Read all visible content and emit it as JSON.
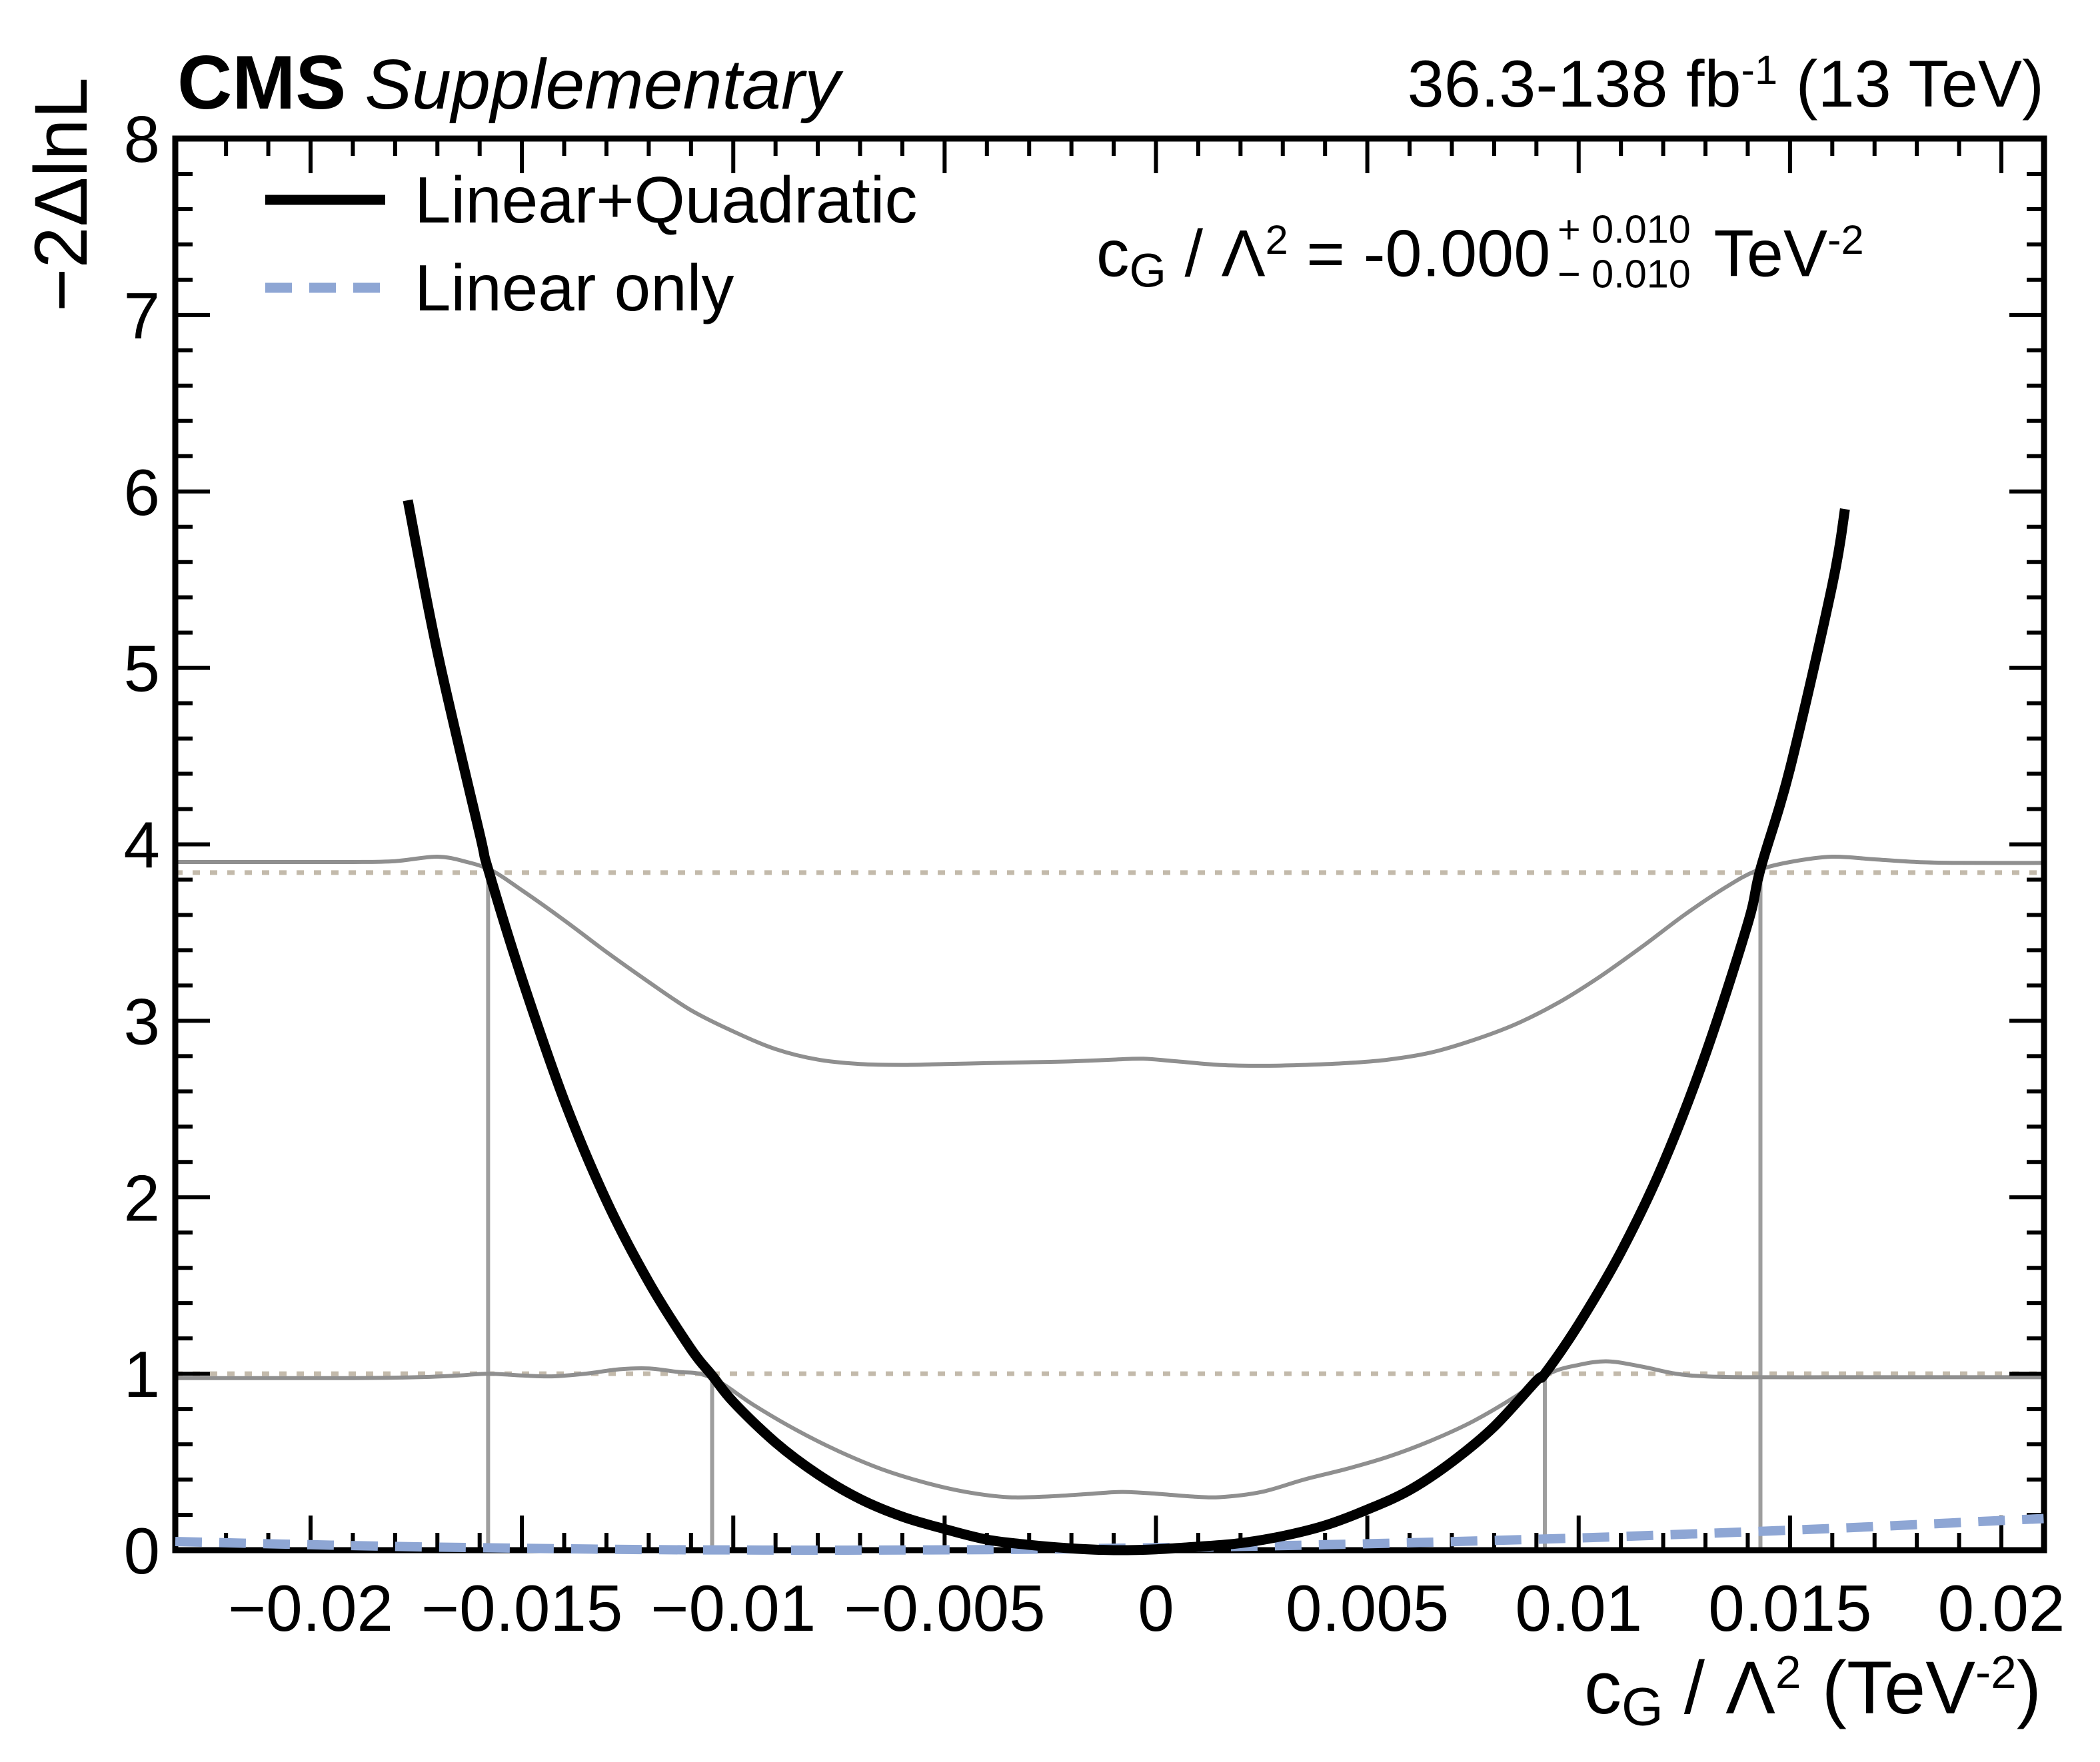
{
  "header": {
    "experiment": "CMS",
    "label": "Supplementary",
    "lumi_main": "36.3-138 fb",
    "lumi_sup": "-1",
    "lumi_energy": " (13 TeV)"
  },
  "fit_result": {
    "coeff_main": "c",
    "coeff_sub": "G",
    "slash": " / ",
    "lambda": "Λ",
    "lambda_sup": "2",
    "equals": " = ",
    "central_value": "-0.000",
    "err_up": "+ 0.010",
    "err_down": "− 0.010",
    "unit_main": " TeV",
    "unit_sup": "-2"
  },
  "y_axis_title": "−2ΔlnL",
  "x_axis_title": {
    "coeff_main": "c",
    "coeff_sub": "G",
    "slash": " / ",
    "lambda": "Λ",
    "lambda_sup": "2",
    "unit_open": " (TeV",
    "unit_sup": "-2",
    "unit_close": ")"
  },
  "legend": [
    {
      "label": "Linear+Quadratic",
      "style": "solid",
      "color": "#000000"
    },
    {
      "label": "Linear only",
      "style": "dashed",
      "color": "#8ea6d4"
    }
  ],
  "chart_data": {
    "type": "line",
    "xlabel": "c_G / Lambda^2 (TeV^-2)",
    "ylabel": "-2 Delta lnL",
    "xlim": [
      -0.02321,
      0.02101
    ],
    "ylim": [
      0,
      8
    ],
    "grid": false,
    "x_ticks": {
      "major_values": [
        -0.02,
        -0.015,
        -0.01,
        -0.005,
        0,
        0.005,
        0.01,
        0.015,
        0.02
      ],
      "major_labels": [
        "−0.02",
        "−0.015",
        "−0.01",
        "−0.005",
        "0",
        "0.005",
        "0.01",
        "0.015",
        "0.02"
      ],
      "minor_start": -0.022,
      "minor_end": 0.02,
      "minor_step": 0.001
    },
    "y_ticks": {
      "major_values": [
        0,
        1,
        2,
        3,
        4,
        5,
        6,
        7,
        8
      ],
      "major_labels": [
        "0",
        "1",
        "2",
        "3",
        "4",
        "5",
        "6",
        "7",
        "8"
      ],
      "minor_start": 0.2,
      "minor_end": 7.8,
      "minor_step": 0.2
    },
    "cl_horizontal_lines": [
      {
        "name": "68% CL threshold",
        "y": 1.0,
        "color": "#c3baab"
      },
      {
        "name": "95% CL threshold",
        "y": 3.84,
        "color": "#c3baab"
      }
    ],
    "cl_vertical_lines": [
      {
        "name": "95% CL lower",
        "x": -0.0158,
        "y_top": 3.86,
        "color": "#9e9e9e"
      },
      {
        "name": "68% CL lower",
        "x": -0.0105,
        "y_top": 0.99,
        "color": "#9e9e9e"
      },
      {
        "name": "68% CL upper",
        "x": 0.0092,
        "y_top": 0.99,
        "color": "#9e9e9e"
      },
      {
        "name": "95% CL upper",
        "x": 0.0143,
        "y_top": 3.86,
        "color": "#9e9e9e"
      }
    ],
    "series": [
      {
        "name": "saturated-scan-upper-gray",
        "color": "#8f8f8f",
        "width": 6,
        "style": "solid",
        "points_x_milli_y": [
          [
            -23.2,
            3.9
          ],
          [
            -21,
            3.9
          ],
          [
            -19,
            3.9
          ],
          [
            -18,
            3.905
          ],
          [
            -17,
            3.93
          ],
          [
            -16.3,
            3.9
          ],
          [
            -15.7,
            3.85
          ],
          [
            -15,
            3.74
          ],
          [
            -14,
            3.57
          ],
          [
            -13,
            3.39
          ],
          [
            -12,
            3.22
          ],
          [
            -11,
            3.06
          ],
          [
            -10,
            2.94
          ],
          [
            -9,
            2.84
          ],
          [
            -8,
            2.78
          ],
          [
            -7,
            2.755
          ],
          [
            -6,
            2.75
          ],
          [
            -5,
            2.755
          ],
          [
            -4,
            2.76
          ],
          [
            -3,
            2.765
          ],
          [
            -2,
            2.77
          ],
          [
            -1,
            2.78
          ],
          [
            -0.3,
            2.785
          ],
          [
            0.5,
            2.77
          ],
          [
            1.5,
            2.75
          ],
          [
            2.5,
            2.745
          ],
          [
            3.5,
            2.75
          ],
          [
            4.5,
            2.76
          ],
          [
            5.5,
            2.78
          ],
          [
            6.5,
            2.82
          ],
          [
            7.5,
            2.89
          ],
          [
            8.5,
            2.98
          ],
          [
            9.5,
            3.1
          ],
          [
            10.5,
            3.25
          ],
          [
            11.5,
            3.42
          ],
          [
            12.5,
            3.6
          ],
          [
            13.5,
            3.76
          ],
          [
            14.2,
            3.85
          ],
          [
            15,
            3.9
          ],
          [
            16,
            3.93
          ],
          [
            17,
            3.915
          ],
          [
            18,
            3.9
          ],
          [
            19,
            3.895
          ],
          [
            21.0,
            3.895
          ]
        ]
      },
      {
        "name": "saturated-scan-lower-gray",
        "color": "#8f8f8f",
        "width": 6,
        "style": "solid",
        "points_x_milli_y": [
          [
            -23.2,
            0.975
          ],
          [
            -21,
            0.975
          ],
          [
            -19,
            0.975
          ],
          [
            -17.5,
            0.98
          ],
          [
            -16.5,
            0.99
          ],
          [
            -15.8,
            1.0
          ],
          [
            -15,
            0.99
          ],
          [
            -14.3,
            0.985
          ],
          [
            -13.5,
            1.0
          ],
          [
            -12.7,
            1.025
          ],
          [
            -12,
            1.03
          ],
          [
            -11.3,
            1.01
          ],
          [
            -10.8,
            1.0
          ],
          [
            -10.3,
            0.95
          ],
          [
            -9.5,
            0.82
          ],
          [
            -8.5,
            0.68
          ],
          [
            -7.5,
            0.56
          ],
          [
            -6.5,
            0.46
          ],
          [
            -5.5,
            0.385
          ],
          [
            -4.5,
            0.33
          ],
          [
            -3.5,
            0.3
          ],
          [
            -2.5,
            0.305
          ],
          [
            -1.5,
            0.32
          ],
          [
            -0.8,
            0.33
          ],
          [
            0,
            0.32
          ],
          [
            0.8,
            0.305
          ],
          [
            1.5,
            0.3
          ],
          [
            2.5,
            0.33
          ],
          [
            3.5,
            0.4
          ],
          [
            4.5,
            0.46
          ],
          [
            5.5,
            0.53
          ],
          [
            6.5,
            0.62
          ],
          [
            7.5,
            0.73
          ],
          [
            8.5,
            0.87
          ],
          [
            9.3,
            1.0
          ],
          [
            10,
            1.05
          ],
          [
            10.7,
            1.07
          ],
          [
            11.5,
            1.04
          ],
          [
            12.3,
            1.0
          ],
          [
            13,
            0.985
          ],
          [
            14,
            0.98
          ],
          [
            16,
            0.98
          ],
          [
            18,
            0.98
          ],
          [
            21.0,
            0.98
          ]
        ]
      },
      {
        "name": "linear-only",
        "color": "#8ea6d4",
        "width": 14,
        "style": "dashed",
        "points_x_milli_y": [
          [
            -23.2,
            0.049
          ],
          [
            -22,
            0.042
          ],
          [
            -20,
            0.031
          ],
          [
            -18,
            0.021
          ],
          [
            -16,
            0.014
          ],
          [
            -14,
            0.008
          ],
          [
            -12,
            0.003
          ],
          [
            -10,
            0.001
          ],
          [
            -8,
            0.0
          ],
          [
            -6,
            0.001
          ],
          [
            -4,
            0.003
          ],
          [
            -2,
            0.008
          ],
          [
            0,
            0.014
          ],
          [
            2,
            0.021
          ],
          [
            4,
            0.031
          ],
          [
            6,
            0.042
          ],
          [
            8,
            0.055
          ],
          [
            10,
            0.069
          ],
          [
            12,
            0.086
          ],
          [
            14,
            0.104
          ],
          [
            16,
            0.123
          ],
          [
            18,
            0.145
          ],
          [
            20,
            0.168
          ],
          [
            21.0,
            0.179
          ]
        ]
      },
      {
        "name": "linear-plus-quadratic",
        "color": "#000000",
        "width": 15,
        "style": "solid",
        "points_x_milli_y": [
          [
            -17.7,
            5.95
          ],
          [
            -17,
            5.09
          ],
          [
            -16,
            4.06
          ],
          [
            -15.8,
            3.86
          ],
          [
            -15,
            3.24
          ],
          [
            -14,
            2.55
          ],
          [
            -13,
            1.98
          ],
          [
            -12,
            1.52
          ],
          [
            -11,
            1.14
          ],
          [
            -10.5,
            0.99
          ],
          [
            -10,
            0.84
          ],
          [
            -9,
            0.61
          ],
          [
            -8,
            0.43
          ],
          [
            -7,
            0.29
          ],
          [
            -6,
            0.19
          ],
          [
            -5,
            0.12
          ],
          [
            -4,
            0.06
          ],
          [
            -3,
            0.03
          ],
          [
            -2,
            0.01
          ],
          [
            -1,
            0.0
          ],
          [
            0,
            0.005
          ],
          [
            1,
            0.02
          ],
          [
            2,
            0.04
          ],
          [
            3,
            0.08
          ],
          [
            4,
            0.14
          ],
          [
            5,
            0.23
          ],
          [
            6,
            0.34
          ],
          [
            7,
            0.5
          ],
          [
            8,
            0.7
          ],
          [
            9,
            0.96
          ],
          [
            9.2,
            1.0
          ],
          [
            10,
            1.28
          ],
          [
            11,
            1.69
          ],
          [
            12,
            2.19
          ],
          [
            13,
            2.81
          ],
          [
            14,
            3.55
          ],
          [
            14.3,
            3.86
          ],
          [
            15,
            4.43
          ],
          [
            16,
            5.47
          ],
          [
            16.3,
            5.9
          ]
        ]
      }
    ]
  },
  "layout_colors": {
    "frame": "#000000",
    "background": "#ffffff"
  }
}
